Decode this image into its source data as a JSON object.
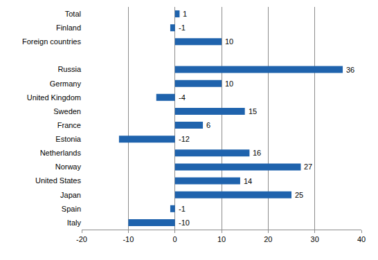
{
  "chart_data": {
    "type": "bar",
    "orientation": "horizontal",
    "categories": [
      "Total",
      "Finland",
      "Foreign countries",
      null,
      "Russia",
      "Germany",
      "United Kingdom",
      "Sweden",
      "France",
      "Estonia",
      "Netherlands",
      "Norway",
      "United States",
      "Japan",
      "Spain",
      "Italy"
    ],
    "values": [
      1,
      -1,
      10,
      null,
      36,
      10,
      -4,
      15,
      6,
      -12,
      16,
      27,
      14,
      25,
      -1,
      -10
    ],
    "color": "#1f63ad",
    "xlim": [
      -20,
      40
    ],
    "xticks": [
      -20,
      -10,
      0,
      10,
      20,
      30,
      40
    ],
    "grid": true,
    "data_labels": true
  }
}
